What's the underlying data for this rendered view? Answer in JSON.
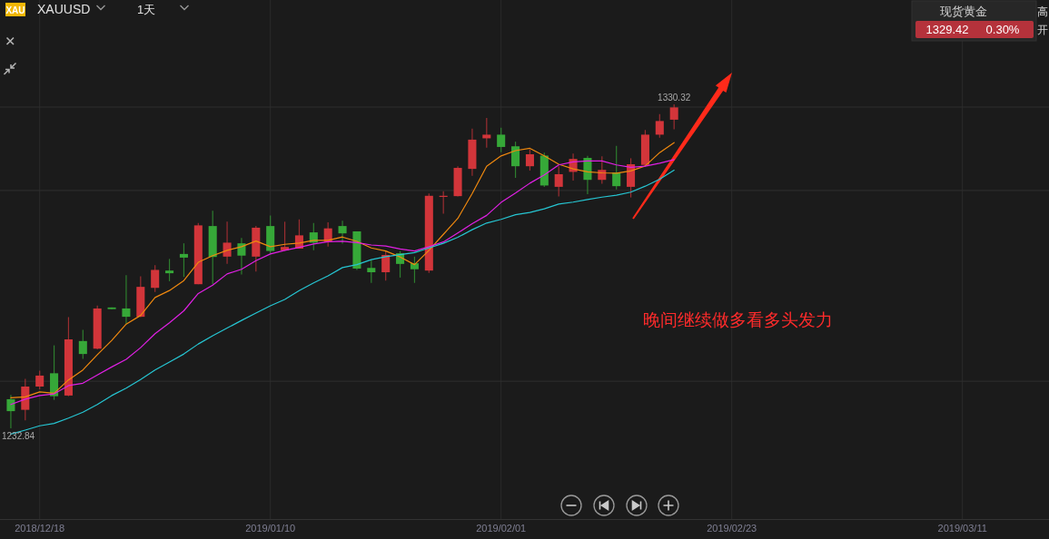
{
  "chart_data": {
    "type": "candlestick",
    "title": "XAUUSD",
    "subtitle": "1天",
    "categories": [
      null,
      null,
      "2018/12/18",
      null,
      null,
      null,
      null,
      null,
      null,
      null,
      null,
      null,
      null,
      null,
      null,
      null,
      null,
      null,
      "2019/01/10",
      null,
      null,
      null,
      null,
      null,
      null,
      null,
      null,
      null,
      null,
      null,
      null,
      null,
      null,
      null,
      "2019/02/01",
      null,
      null,
      null,
      null,
      null,
      null,
      null,
      null,
      null,
      null,
      null,
      null,
      null,
      null,
      null,
      "2019/02/23",
      null,
      null,
      null,
      null,
      null,
      null,
      null,
      null,
      null,
      null,
      null,
      null,
      null,
      null,
      null,
      "2019/03/11",
      null,
      null,
      null,
      null,
      null
    ],
    "ohlc": [
      [
        1241.6,
        1242.9,
        1232.84,
        1238.0
      ],
      [
        1238.4,
        1247.7,
        1235.2,
        1245.4
      ],
      [
        1245.4,
        1250.2,
        1244.6,
        1248.7
      ],
      [
        1249.4,
        1257.8,
        1241.4,
        1242.5
      ],
      [
        1242.7,
        1266.3,
        1242.5,
        1259.6
      ],
      [
        1259.1,
        1262.5,
        1253.7,
        1255.2
      ],
      [
        1256.8,
        1269.8,
        1256.6,
        1268.9
      ],
      [
        1269.2,
        1269.2,
        1268.7,
        1268.7
      ],
      [
        1268.9,
        1278.9,
        1264.3,
        1266.4
      ],
      [
        1266.4,
        1278.6,
        1266.3,
        1275.4
      ],
      [
        1275.1,
        1281.9,
        1273.9,
        1280.5
      ],
      [
        1280.3,
        1283.8,
        1277.1,
        1279.5
      ],
      [
        1285.3,
        1288.5,
        1278.4,
        1284.2
      ],
      [
        1276.2,
        1294.6,
        1276.2,
        1293.9
      ],
      [
        1293.7,
        1298.3,
        1276.2,
        1284.4
      ],
      [
        1284.5,
        1295.0,
        1282.3,
        1288.7
      ],
      [
        1288.5,
        1290.1,
        1279.1,
        1284.8
      ],
      [
        1284.5,
        1293.7,
        1280.0,
        1293.2
      ],
      [
        1293.7,
        1296.9,
        1285.5,
        1286.2
      ],
      [
        1286.4,
        1295.0,
        1286.2,
        1287.4
      ],
      [
        1286.9,
        1295.7,
        1286.9,
        1290.9
      ],
      [
        1291.8,
        1294.6,
        1286.4,
        1288.7
      ],
      [
        1288.9,
        1294.8,
        1287.5,
        1293.0
      ],
      [
        1293.7,
        1295.3,
        1288.4,
        1291.5
      ],
      [
        1292.1,
        1292.1,
        1280.5,
        1280.9
      ],
      [
        1281.1,
        1283.4,
        1276.6,
        1279.8
      ],
      [
        1279.8,
        1286.2,
        1277.3,
        1285.0
      ],
      [
        1285.5,
        1286.2,
        1278.2,
        1282.3
      ],
      [
        1282.5,
        1284.5,
        1276.6,
        1280.7
      ],
      [
        1280.3,
        1303.5,
        1279.6,
        1302.8
      ],
      [
        1302.6,
        1304.2,
        1297.4,
        1302.8
      ],
      [
        1302.7,
        1311.7,
        1302.6,
        1311.2
      ],
      [
        1310.9,
        1323.0,
        1308.8,
        1319.7
      ],
      [
        1320.1,
        1326.2,
        1317.3,
        1321.2
      ],
      [
        1321.2,
        1323.3,
        1315.9,
        1317.5
      ],
      [
        1317.7,
        1319.1,
        1308.2,
        1311.7
      ],
      [
        1311.7,
        1316.7,
        1310.4,
        1315.3
      ],
      [
        1314.9,
        1315.8,
        1305.5,
        1305.9
      ],
      [
        1305.5,
        1311.7,
        1302.6,
        1309.3
      ],
      [
        1310.0,
        1315.5,
        1307.4,
        1313.9
      ],
      [
        1314.2,
        1314.8,
        1303.3,
        1307.6
      ],
      [
        1307.6,
        1314.7,
        1306.4,
        1310.6
      ],
      [
        1309.8,
        1317.8,
        1304.7,
        1305.7
      ],
      [
        1305.5,
        1314.1,
        1302.3,
        1312.3
      ],
      [
        1312.1,
        1322.6,
        1311.9,
        1321.2
      ],
      [
        1321.2,
        1327.4,
        1320.3,
        1325.3
      ],
      [
        1325.7,
        1330.32,
        1322.8,
        1329.4
      ],
      null,
      null,
      null,
      null,
      null,
      null,
      null,
      null,
      null,
      null,
      null,
      null,
      null,
      null,
      null,
      null,
      null,
      null,
      null,
      null,
      null,
      null,
      null,
      null,
      null
    ],
    "colors": [
      "#36a838",
      "#d2353a",
      "#d2353a",
      "#36a838",
      "#d2353a",
      "#36a838",
      "#d2353a",
      "#36a838",
      "#36a838",
      "#d2353a",
      "#d2353a",
      "#36a838",
      "#36a838",
      "#d2353a",
      "#36a838",
      "#d2353a",
      "#36a838",
      "#d2353a",
      "#36a838",
      "#d2353a",
      "#d2353a",
      "#36a838",
      "#d2353a",
      "#36a838",
      "#36a838",
      "#36a838",
      "#d2353a",
      "#36a838",
      "#36a838",
      "#d2353a",
      "#d2353a",
      "#d2353a",
      "#d2353a",
      "#d2353a",
      "#36a838",
      "#36a838",
      "#d2353a",
      "#36a838",
      "#d2353a",
      "#d2353a",
      "#36a838",
      "#d2353a",
      "#36a838",
      "#d2353a",
      "#d2353a",
      "#d2353a",
      "#d2353a",
      null,
      null,
      null,
      null,
      null,
      null,
      null,
      null,
      null,
      null,
      null,
      null,
      null,
      null,
      null,
      null,
      null,
      null,
      null,
      null,
      null,
      null,
      null,
      null,
      null
    ],
    "series": [
      {
        "type": "line",
        "color": "#f0890f",
        "values": [
          1242.0,
          1242.3,
          1243.8,
          1243.4,
          1247.4,
          1250.4,
          1255.0,
          1259.3,
          1264.2,
          1266.8,
          1272.2,
          1274.3,
          1277.3,
          1282.8,
          1284.8,
          1286.4,
          1287.5,
          1289.2,
          1287.5,
          1288.2,
          1288.6,
          1289.4,
          1289.4,
          1290.4,
          1289.1,
          1287.1,
          1286.2,
          1284.4,
          1282.1,
          1286.4,
          1291.2,
          1296.0,
          1303.5,
          1311.7,
          1314.8,
          1316.4,
          1317.1,
          1314.8,
          1312.3,
          1310.9,
          1310.0,
          1309.7,
          1309.6,
          1310.3,
          1311.8,
          1315.8,
          1318.8,
          null,
          null,
          null,
          null,
          null,
          null,
          null,
          null,
          null,
          null,
          null,
          null,
          null,
          null,
          null,
          null,
          null,
          null,
          null,
          null,
          null,
          null,
          null,
          null,
          null
        ]
      },
      {
        "type": "line",
        "color": "#e020e4",
        "values": [
          1240.0,
          1241.6,
          1242.7,
          1243.2,
          1245.7,
          1246.4,
          1248.9,
          1251.3,
          1253.6,
          1257.1,
          1261.3,
          1264.6,
          1268.2,
          1273.4,
          1275.9,
          1279.3,
          1280.7,
          1283.3,
          1285.3,
          1286.4,
          1287.3,
          1288.3,
          1289.0,
          1289.1,
          1288.7,
          1288.0,
          1287.7,
          1286.8,
          1286.2,
          1287.5,
          1288.9,
          1291.6,
          1294.4,
          1296.9,
          1300.8,
          1303.6,
          1306.6,
          1309.1,
          1312.1,
          1313.0,
          1313.3,
          1313.3,
          1312.1,
          1311.4,
          1311.7,
          1312.6,
          1313.7,
          null,
          null,
          null,
          null,
          null,
          null,
          null,
          null,
          null,
          null,
          null,
          null,
          null,
          null,
          null,
          null,
          null,
          null,
          null,
          null,
          null,
          null,
          null,
          null,
          null
        ]
      },
      {
        "type": "line",
        "color": "#26c6d3",
        "values": [
          1231.1,
          1232.3,
          1233.6,
          1234.3,
          1235.9,
          1237.7,
          1240.0,
          1242.7,
          1244.9,
          1247.5,
          1250.4,
          1252.8,
          1255.2,
          1258.2,
          1260.7,
          1263.0,
          1265.3,
          1267.5,
          1269.7,
          1271.6,
          1274.3,
          1276.6,
          1278.7,
          1281.2,
          1282.1,
          1283.6,
          1284.5,
          1285.1,
          1285.7,
          1287.1,
          1288.5,
          1290.3,
          1292.6,
          1294.6,
          1295.7,
          1297.1,
          1297.8,
          1298.9,
          1300.3,
          1300.9,
          1301.7,
          1302.4,
          1303.0,
          1303.9,
          1305.7,
          1307.8,
          1310.5,
          null,
          null,
          null,
          null,
          null,
          null,
          null,
          null,
          null,
          null,
          null,
          null,
          null,
          null,
          null,
          null,
          null,
          null,
          null,
          null,
          null,
          null,
          null,
          null,
          null
        ]
      }
    ],
    "yticks": [
      {
        "value": 1247.0,
        "label": null
      },
      {
        "value": 1304.4,
        "label": null
      },
      {
        "value": 1329.5,
        "label": null
      }
    ],
    "grid": true,
    "tick_labels": "x",
    "annotations": [
      {
        "text": "1330.32",
        "y": 1330.32
      },
      {
        "text": "1232.84",
        "y": 1232.84
      },
      "晚间继续做多看多头发力",
      "XAU",
      "现货黄金",
      "1329.42",
      "0.30%",
      "高",
      "开"
    ]
  }
}
